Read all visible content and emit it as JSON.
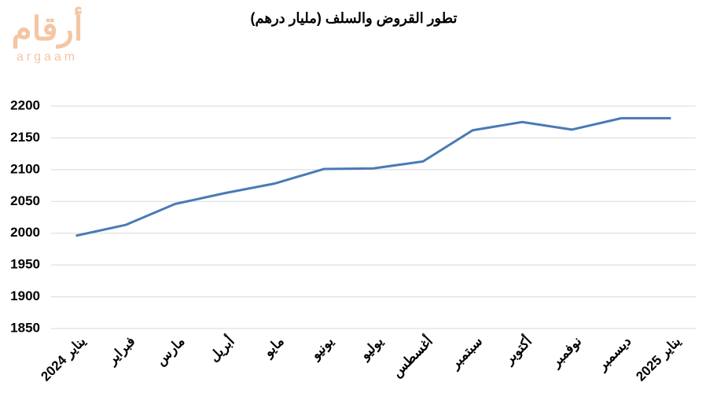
{
  "watermark": {
    "arabic": "أرقام",
    "latin": "argaam"
  },
  "chart_data": {
    "type": "line",
    "title": "تطور القروض والسلف (مليار درهم)",
    "categories": [
      "يناير 2024",
      "فبراير",
      "مارس",
      "أبريل",
      "مايو",
      "يونيو",
      "يوليو",
      "أغسطس",
      "سبتمبر",
      "أكتوبر",
      "نوفمبر",
      "ديسمبر",
      "يناير 2025"
    ],
    "values": [
      1996,
      2013,
      2046,
      2063,
      2078,
      2101,
      2102,
      2113,
      2162,
      2175,
      2163,
      2181,
      2181
    ],
    "color": "#4a7ab5",
    "ylim": [
      1850,
      2200
    ],
    "yticks": [
      1850,
      1900,
      1950,
      2000,
      2050,
      2100,
      2150,
      2200
    ],
    "grid": true
  }
}
